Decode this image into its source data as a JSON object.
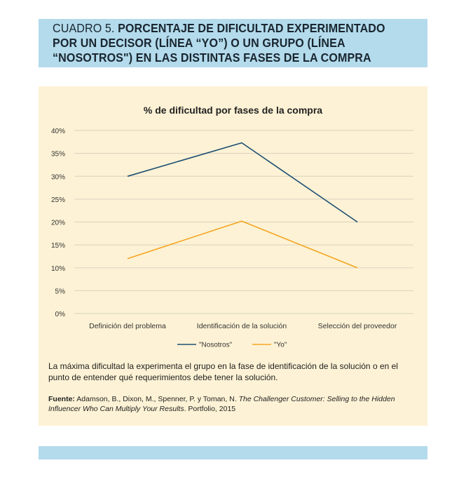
{
  "header": {
    "label": "CUADRO 5.",
    "title": "PORCENTAJE DE DIFICULTAD EXPERIMENTADO POR UN DECISOR (LÍNEA “YO”) O UN GRUPO (LÍNEA “NOSOTROS\") EN LAS DISTINTAS FASES DE LA COMPRA"
  },
  "chart_data": {
    "type": "line",
    "title": "% de dificultad por fases de la compra",
    "categories": [
      "Definición del problema",
      "Identificación de la solución",
      "Selección del proveedor"
    ],
    "series": [
      {
        "name": "\"Nosotros\"",
        "color": "#1d4f73",
        "values": [
          30,
          37.3,
          20
        ]
      },
      {
        "name": "\"Yo\"",
        "color": "#f5a623",
        "values": [
          12,
          20.2,
          10
        ]
      }
    ],
    "ylim": [
      0,
      40
    ],
    "yticks": [
      0,
      5,
      10,
      15,
      20,
      25,
      30,
      35,
      40
    ],
    "ytick_labels": [
      "0%",
      "5%",
      "10%",
      "15%",
      "20%",
      "25%",
      "30%",
      "35%",
      "40%"
    ],
    "grid": true,
    "legend": "bottom"
  },
  "note": "La máxima dificultad la experimenta el grupo en la fase de identificación de la solución o en el punto de entender qué requerimientos debe tener la solución.",
  "source": {
    "label": "Fuente:",
    "authors": "Adamson, B., Dixon, M., Spenner, P. y Toman, N.",
    "work": "The Challenger Customer: Selling to the Hidden Influencer Who Can Multiply Your Results",
    "publisher": ". Portfolio, 2015"
  },
  "colors": {
    "band": "#b3dbec",
    "panel": "#fdf2d5",
    "grid": "#d9d2c0"
  }
}
